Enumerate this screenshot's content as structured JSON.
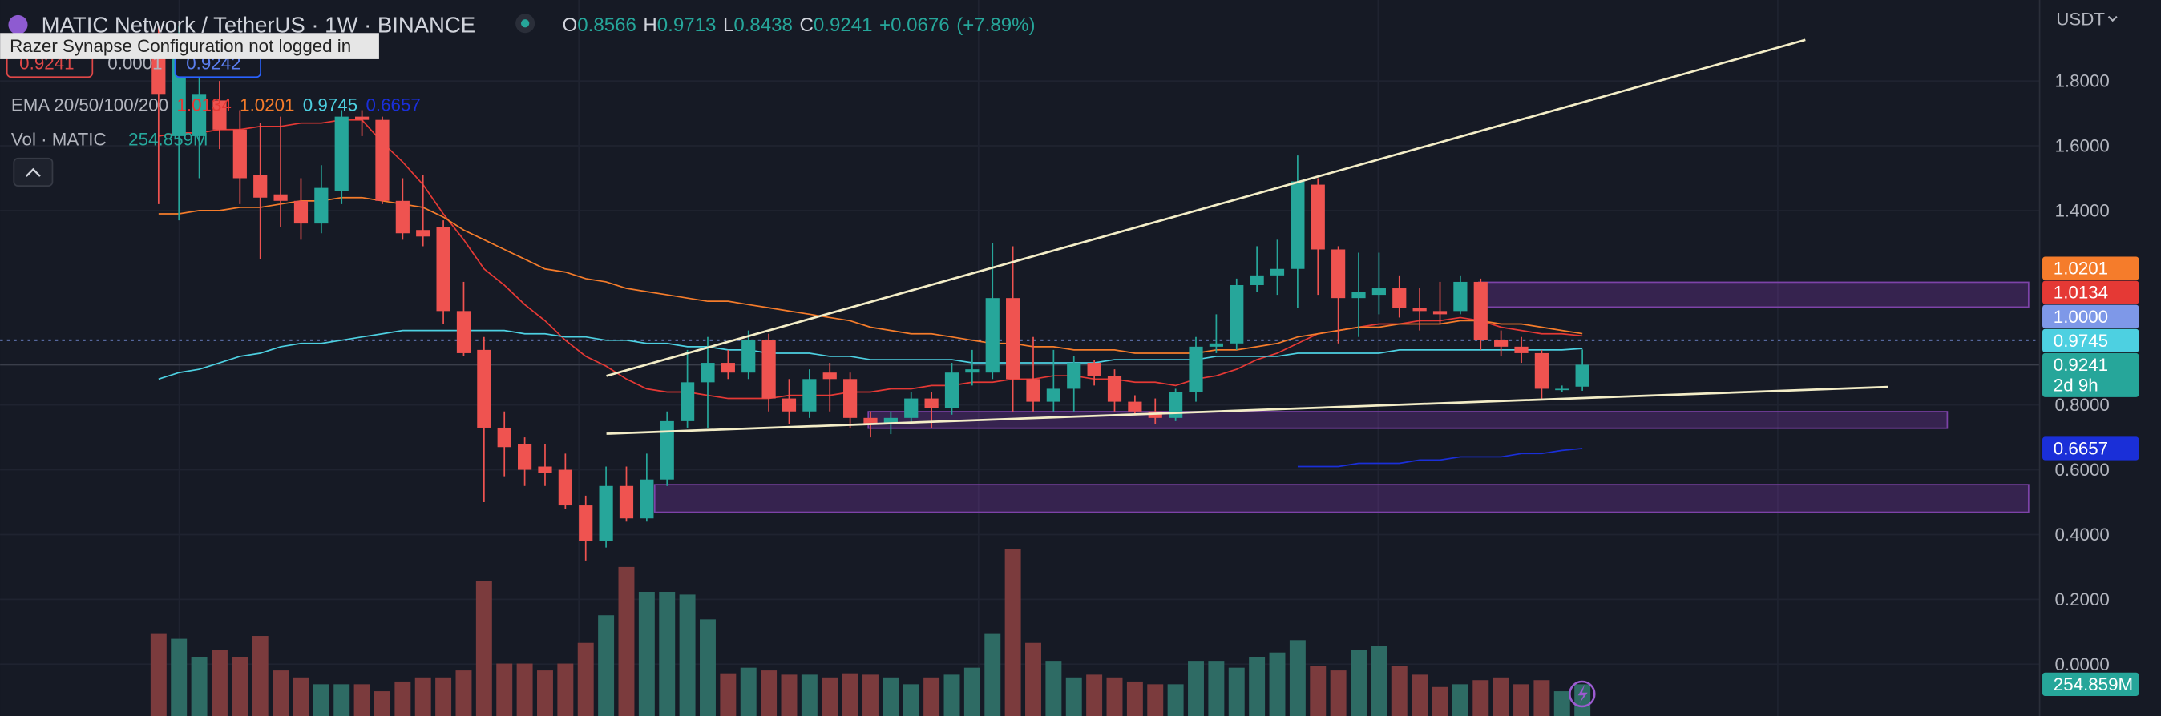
{
  "chart_data": {
    "type": "candlestick",
    "title": "MATIC Network / TetherUS · 1W · BINANCE",
    "ohlc_labels": [
      "O",
      "H",
      "L",
      "C"
    ],
    "change": "+0.0676",
    "change_pct": "(+7.89%)",
    "currency": "USDT",
    "tooltip": "Razer Synapse Configuration not logged in",
    "trade": {
      "sell": 0.9241,
      "spread": 0.0001,
      "buy": 0.9242
    },
    "countdown": "2d 9h",
    "up_color": "#26a69a",
    "down_color": "#ef5350",
    "ylim": [
      -0.16,
      2.05
    ],
    "yticks": [
      {
        "value": 0,
        "label": "0.0000"
      },
      {
        "value": 0.2,
        "label": "0.2000"
      },
      {
        "value": 0.4,
        "label": "0.4000"
      },
      {
        "value": 0.6,
        "label": "0.6000"
      },
      {
        "value": 0.8,
        "label": "0.8000"
      },
      {
        "value": 1.4,
        "label": "1.4000"
      },
      {
        "value": 1.6,
        "label": "1.6000"
      },
      {
        "value": 1.8,
        "label": "1.8000"
      }
    ],
    "grid": true,
    "open": [
      1.89,
      1.63,
      1.63,
      1.74,
      1.65,
      1.51,
      1.45,
      1.43,
      1.36,
      1.46,
      1.69,
      1.68,
      1.43,
      1.34,
      1.35,
      1.09,
      0.97,
      0.73,
      0.68,
      0.61,
      0.6,
      0.49,
      0.38,
      0.55,
      0.45,
      0.57,
      0.75,
      0.87,
      0.93,
      0.9,
      1.0,
      0.82,
      0.78,
      0.9,
      0.88,
      0.76,
      0.74,
      0.76,
      0.82,
      0.79,
      0.9,
      0.9,
      1.13,
      0.88,
      0.81,
      0.85,
      0.93,
      0.89,
      0.81,
      0.78,
      0.76,
      0.84,
      0.98,
      0.99,
      1.17,
      1.2,
      1.22,
      1.48,
      1.28,
      1.13,
      1.14,
      1.16,
      1.1,
      1.09,
      1.09,
      1.18,
      1.0,
      0.98,
      0.96,
      0.85,
      0.8566
    ],
    "high": [
      1.97,
      1.97,
      1.84,
      1.8,
      1.71,
      1.67,
      1.69,
      1.5,
      1.54,
      1.71,
      1.71,
      1.69,
      1.5,
      1.51,
      1.37,
      1.18,
      1.01,
      0.78,
      0.7,
      0.68,
      0.65,
      0.52,
      0.61,
      0.61,
      0.65,
      0.78,
      0.97,
      1.01,
      0.97,
      1.03,
      1.02,
      0.88,
      0.91,
      0.93,
      0.9,
      0.78,
      0.78,
      0.84,
      0.84,
      0.93,
      0.97,
      1.3,
      1.29,
      1.01,
      0.97,
      0.95,
      0.94,
      0.91,
      0.83,
      0.82,
      0.85,
      1.01,
      1.08,
      1.19,
      1.29,
      1.31,
      1.57,
      1.5,
      1.29,
      1.27,
      1.27,
      1.2,
      1.16,
      1.18,
      1.2,
      1.19,
      1.03,
      1.01,
      0.97,
      0.86,
      0.9713
    ],
    "low": [
      1.42,
      1.37,
      1.5,
      1.59,
      1.42,
      1.25,
      1.35,
      1.31,
      1.33,
      1.42,
      1.63,
      1.42,
      1.31,
      1.29,
      1.05,
      0.95,
      0.5,
      0.58,
      0.55,
      0.55,
      0.48,
      0.32,
      0.36,
      0.44,
      0.44,
      0.55,
      0.73,
      0.73,
      0.88,
      0.88,
      0.78,
      0.74,
      0.76,
      0.78,
      0.73,
      0.7,
      0.71,
      0.74,
      0.73,
      0.77,
      0.86,
      0.88,
      0.78,
      0.78,
      0.78,
      0.78,
      0.86,
      0.78,
      0.77,
      0.74,
      0.75,
      0.81,
      0.96,
      0.97,
      1.15,
      1.14,
      1.1,
      1.14,
      0.99,
      1.01,
      1.08,
      1.07,
      1.03,
      1.05,
      1.08,
      0.97,
      0.95,
      0.93,
      0.82,
      0.84,
      0.8438
    ],
    "close": [
      1.76,
      1.89,
      1.76,
      1.65,
      1.5,
      1.44,
      1.43,
      1.36,
      1.47,
      1.69,
      1.68,
      1.43,
      1.33,
      1.32,
      1.09,
      0.96,
      0.73,
      0.67,
      0.6,
      0.59,
      0.49,
      0.38,
      0.55,
      0.45,
      0.57,
      0.75,
      0.87,
      0.93,
      0.9,
      1.0,
      0.82,
      0.78,
      0.88,
      0.88,
      0.76,
      0.74,
      0.76,
      0.82,
      0.79,
      0.9,
      0.91,
      1.13,
      0.88,
      0.81,
      0.85,
      0.93,
      0.89,
      0.81,
      0.78,
      0.76,
      0.84,
      0.98,
      0.99,
      1.17,
      1.2,
      1.22,
      1.49,
      1.28,
      1.13,
      1.15,
      1.16,
      1.1,
      1.09,
      1.08,
      1.18,
      1.0,
      0.98,
      0.96,
      0.85,
      0.85,
      0.9241
    ],
    "ema": {
      "name": "EMA 20/50/100/200",
      "series": [
        {
          "color": "#e53935",
          "values": [
            1.63,
            1.64,
            1.64,
            1.65,
            1.65,
            1.66,
            1.66,
            1.67,
            1.67,
            1.68,
            1.68,
            1.61,
            1.55,
            1.48,
            1.39,
            1.31,
            1.22,
            1.17,
            1.11,
            1.06,
            1.0,
            0.95,
            0.92,
            0.88,
            0.85,
            0.84,
            0.84,
            0.83,
            0.82,
            0.82,
            0.82,
            0.83,
            0.83,
            0.83,
            0.84,
            0.84,
            0.85,
            0.85,
            0.86,
            0.86,
            0.87,
            0.87,
            0.88,
            0.88,
            0.89,
            0.89,
            0.88,
            0.88,
            0.87,
            0.87,
            0.86,
            0.88,
            0.89,
            0.91,
            0.94,
            0.96,
            0.99,
            1.02,
            1.03,
            1.04,
            1.05,
            1.05,
            1.06,
            1.06,
            1.07,
            1.06,
            1.04,
            1.03,
            1.02,
            1.02,
            1.0134
          ]
        },
        {
          "color": "#f57c2b",
          "values": [
            1.39,
            1.39,
            1.4,
            1.4,
            1.41,
            1.41,
            1.42,
            1.43,
            1.43,
            1.44,
            1.44,
            1.43,
            1.42,
            1.41,
            1.38,
            1.34,
            1.31,
            1.28,
            1.25,
            1.22,
            1.21,
            1.19,
            1.18,
            1.16,
            1.15,
            1.14,
            1.13,
            1.12,
            1.12,
            1.11,
            1.1,
            1.09,
            1.08,
            1.07,
            1.06,
            1.04,
            1.03,
            1.02,
            1.02,
            1.01,
            1.0,
            0.99,
            0.99,
            0.98,
            0.98,
            0.97,
            0.97,
            0.97,
            0.96,
            0.96,
            0.96,
            0.96,
            0.97,
            0.97,
            0.98,
            0.99,
            1.01,
            1.02,
            1.03,
            1.04,
            1.04,
            1.05,
            1.05,
            1.05,
            1.06,
            1.06,
            1.05,
            1.05,
            1.04,
            1.03,
            1.0201
          ]
        },
        {
          "color": "#4dd0e1",
          "values": [
            0.88,
            0.9,
            0.91,
            0.93,
            0.95,
            0.96,
            0.98,
            0.99,
            0.99,
            1.0,
            1.01,
            1.02,
            1.03,
            1.03,
            1.03,
            1.03,
            1.03,
            1.03,
            1.02,
            1.02,
            1.01,
            1.01,
            1.0,
            1.0,
            0.99,
            0.99,
            0.98,
            0.98,
            0.97,
            0.97,
            0.96,
            0.96,
            0.96,
            0.95,
            0.95,
            0.94,
            0.94,
            0.94,
            0.94,
            0.94,
            0.93,
            0.93,
            0.93,
            0.93,
            0.93,
            0.93,
            0.93,
            0.94,
            0.94,
            0.94,
            0.94,
            0.94,
            0.95,
            0.95,
            0.95,
            0.95,
            0.96,
            0.96,
            0.96,
            0.96,
            0.96,
            0.97,
            0.97,
            0.97,
            0.97,
            0.97,
            0.97,
            0.97,
            0.97,
            0.97,
            0.9745
          ]
        },
        {
          "color": "#1a2fd8",
          "values": [
            null,
            null,
            null,
            null,
            null,
            null,
            null,
            null,
            null,
            null,
            null,
            null,
            null,
            null,
            null,
            null,
            null,
            null,
            null,
            null,
            null,
            null,
            null,
            null,
            null,
            null,
            null,
            null,
            null,
            null,
            null,
            null,
            null,
            null,
            null,
            null,
            null,
            null,
            null,
            null,
            null,
            null,
            null,
            null,
            null,
            null,
            null,
            null,
            null,
            null,
            null,
            null,
            null,
            null,
            null,
            null,
            0.61,
            0.61,
            0.61,
            0.62,
            0.62,
            0.62,
            0.63,
            0.63,
            0.64,
            0.64,
            0.64,
            0.65,
            0.65,
            0.66,
            0.6657
          ]
        }
      ]
    },
    "volume": {
      "name": "Vol · MATIC",
      "last_label": "254.859M",
      "ylim": [
        0,
        5750
      ],
      "up_color": "#2e6b64",
      "down_color": "#7b3b3d",
      "values": [
        665,
        620,
        476,
        532,
        476,
        643,
        366,
        310,
        255,
        255,
        255,
        199,
        277,
        310,
        310,
        366,
        1086,
        421,
        421,
        366,
        421,
        587,
        809,
        1197,
        997,
        997,
        975,
        776,
        343,
        388,
        366,
        332,
        332,
        310,
        343,
        332,
        310,
        255,
        310,
        332,
        388,
        665,
        1341,
        587,
        443,
        310,
        332,
        310,
        277,
        255,
        255,
        443,
        443,
        388,
        476,
        510,
        609,
        399,
        366,
        532,
        565,
        399,
        332,
        233,
        255,
        288,
        310,
        255,
        288,
        199,
        254.859
      ]
    },
    "crosshair": {
      "value": 1,
      "label": "1.0000",
      "color": "#7e98e8"
    }
  }
}
